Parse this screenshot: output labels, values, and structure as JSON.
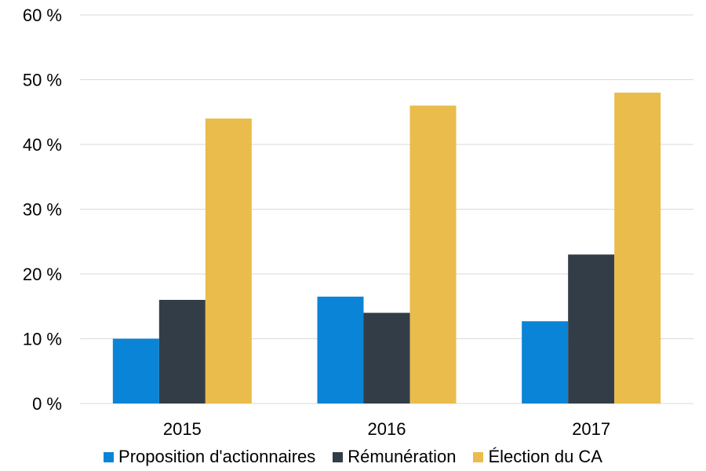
{
  "chart_data": {
    "type": "bar",
    "categories": [
      "2015",
      "2016",
      "2017"
    ],
    "series": [
      {
        "name": "Proposition d'actionnaires",
        "color": "#0a84d6",
        "values": [
          10,
          16.5,
          12.7
        ]
      },
      {
        "name": "Rémunération",
        "color": "#333d47",
        "values": [
          16,
          14,
          23
        ]
      },
      {
        "name": "Élection du CA",
        "color": "#eabc4c",
        "values": [
          44,
          46,
          48
        ]
      }
    ],
    "ylim": [
      0,
      60
    ],
    "yticks": [
      0,
      10,
      20,
      30,
      40,
      50,
      60
    ],
    "ytick_labels": [
      "0 %",
      "10 %",
      "20 %",
      "30 %",
      "40 %",
      "50 %",
      "60 %"
    ],
    "grid": true,
    "gridline_color": "#d9d9d9",
    "legend_position": "bottom",
    "title": "",
    "xlabel": "",
    "ylabel": ""
  }
}
